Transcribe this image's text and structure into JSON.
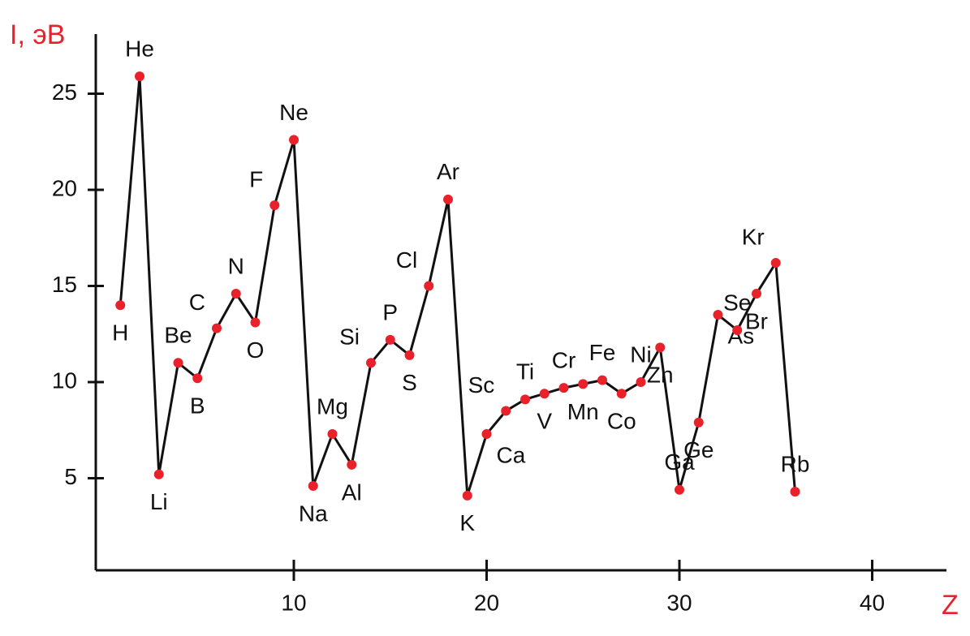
{
  "chart_data": {
    "type": "line",
    "y_label": "I, эВ",
    "x_label": "Z",
    "x": [
      1,
      2,
      3,
      4,
      5,
      6,
      7,
      8,
      9,
      10,
      11,
      12,
      13,
      14,
      15,
      16,
      17,
      18,
      19,
      20,
      21,
      22,
      23,
      24,
      25,
      26,
      27,
      28,
      29,
      30,
      31,
      32,
      33,
      34,
      35,
      36
    ],
    "series": [
      {
        "color": "#e8212b",
        "point_labels": [
          "H",
          "He",
          "Li",
          "Be",
          "B",
          "C",
          "N",
          "O",
          "F",
          "Ne",
          "Na",
          "Mg",
          "Al",
          "Si",
          "P",
          "S",
          "Cl",
          "Ar",
          "K",
          "Ca",
          "Sc",
          "Ti",
          "V",
          "Cr",
          "Mn",
          "Fe",
          "Co",
          "Ni",
          "Zn",
          "Ga",
          "Ge",
          "As",
          "Se",
          "Br",
          "Kr",
          "Rb"
        ],
        "values": [
          14.0,
          25.9,
          5.2,
          11.0,
          10.2,
          12.8,
          14.6,
          13.1,
          19.2,
          22.6,
          4.6,
          7.3,
          5.7,
          11.0,
          12.2,
          11.4,
          15.0,
          19.5,
          4.1,
          7.3,
          8.5,
          9.1,
          9.4,
          9.7,
          9.9,
          10.1,
          9.4,
          10.0,
          11.8,
          4.4,
          7.9,
          13.5,
          12.7,
          14.6,
          16.2,
          4.3
        ]
      }
    ],
    "xlim": [
      0,
      44
    ],
    "xticks": [
      10,
      20,
      30,
      40
    ],
    "ylim": [
      0,
      28
    ],
    "yticks": [
      5,
      10,
      15,
      20,
      25
    ]
  }
}
